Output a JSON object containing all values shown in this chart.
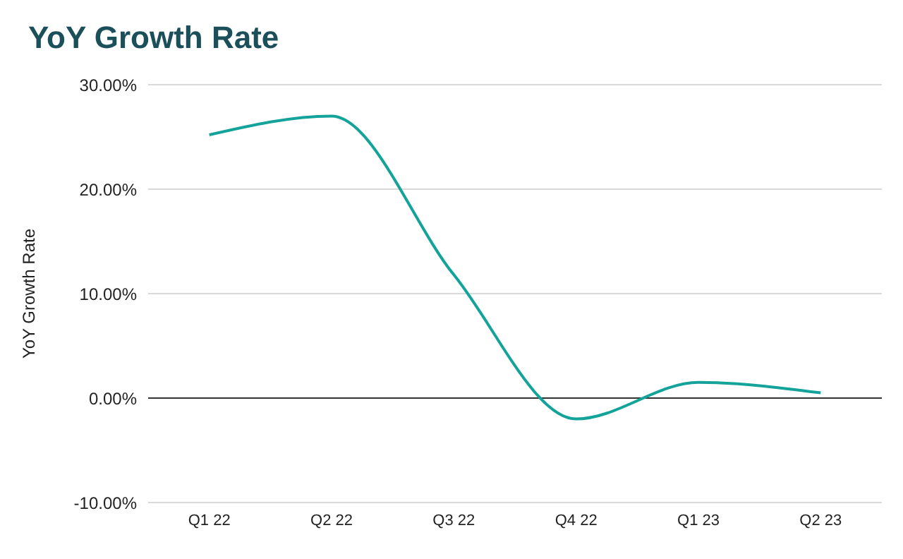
{
  "chart_data": {
    "type": "line",
    "title": "YoY Growth Rate",
    "ylabel": "YoY Growth Rate",
    "categories": [
      "Q1 22",
      "Q2 22",
      "Q3 22",
      "Q4 22",
      "Q1 23",
      "Q2 23"
    ],
    "series": [
      {
        "color": "#14a39a",
        "values": [
          25.2,
          27.0,
          11.8,
          -2.0,
          1.5,
          0.5
        ]
      }
    ],
    "ylim": [
      -10,
      30
    ],
    "yticks": [
      {
        "value": -10,
        "label": "-10.00%"
      },
      {
        "value": 0,
        "label": "0.00%"
      },
      {
        "value": 10,
        "label": "10.00%"
      },
      {
        "value": 20,
        "label": "20.00%"
      },
      {
        "value": 30,
        "label": "30.00%"
      }
    ],
    "ref_lines": [
      {
        "axis": "y",
        "value": 0,
        "color": "#333333"
      }
    ],
    "grid": "y",
    "marker": "none",
    "line_style": "solid"
  }
}
